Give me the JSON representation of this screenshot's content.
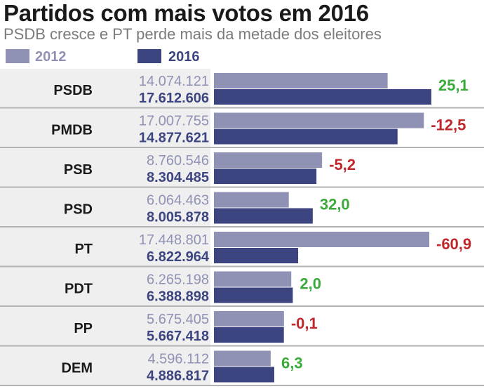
{
  "chart_data": {
    "type": "bar",
    "orientation": "horizontal",
    "title": "Partidos com mais votos em 2016",
    "subtitle": "PSDB cresce e PT perde mais da metade dos eleitores",
    "categories": [
      "PSDB",
      "PMDB",
      "PSB",
      "PSD",
      "PT",
      "PDT",
      "PP",
      "DEM"
    ],
    "series": [
      {
        "name": "2012",
        "values": [
          14074121,
          17007755,
          8760546,
          6064463,
          17448801,
          6265198,
          5675405,
          4596112
        ],
        "labels": [
          "14.074.121",
          "17.007.755",
          "8.760.546",
          "6.064.463",
          "17.448.801",
          "6.265.198",
          "5.675.405",
          "4.596.112"
        ],
        "color": "#8f92b5"
      },
      {
        "name": "2016",
        "values": [
          17612606,
          14877621,
          8304485,
          8005878,
          6822964,
          6388898,
          5667418,
          4886817
        ],
        "labels": [
          "17.612.606",
          "14.877.621",
          "8.304.485",
          "8.005.878",
          "6.822.964",
          "6.388.898",
          "5.667.418",
          "4.886.817"
        ],
        "color": "#3d4581"
      }
    ],
    "changes": [
      {
        "value": 25.1,
        "label": "25,1"
      },
      {
        "value": -12.5,
        "label": "-12,5"
      },
      {
        "value": -5.2,
        "label": "-5,2"
      },
      {
        "value": 32.0,
        "label": "32,0"
      },
      {
        "value": -60.9,
        "label": "-60,9"
      },
      {
        "value": 2.0,
        "label": "2,0"
      },
      {
        "value": -0.1,
        "label": "-0,1"
      },
      {
        "value": 6.3,
        "label": "6,3"
      }
    ],
    "colors": {
      "positive": "#3aab3a",
      "negative": "#c0272d",
      "row_band": "#efefef",
      "row_divider": "#b3b3b3"
    },
    "legend_position": "top-left",
    "grid": false
  }
}
